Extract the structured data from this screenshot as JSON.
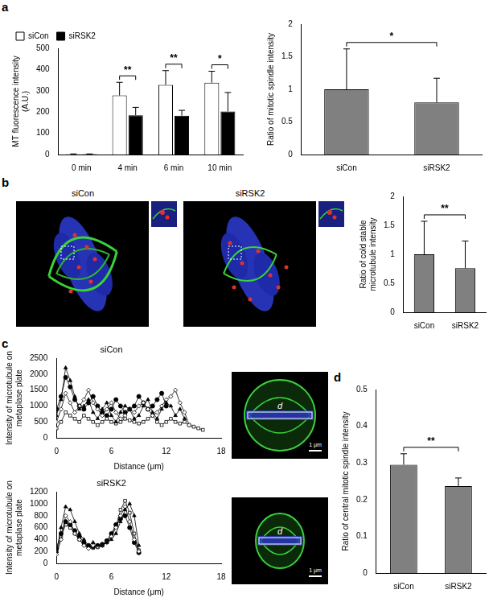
{
  "panel_labels": [
    "a",
    "b",
    "c",
    "d"
  ],
  "images": [
    {
      "label": "siCon"
    },
    {
      "label": "siRSK2"
    },
    {
      "label": "d",
      "scale_bar": "1 μm"
    },
    {
      "label": "d",
      "scale_bar": "1 μm"
    }
  ],
  "chart_data": [
    {
      "type": "bar",
      "categories": [
        "0 min",
        "4 min",
        "6 min",
        "10 min"
      ],
      "series": [
        {
          "name": "siCon",
          "color": "#ffffff",
          "values": [
            2,
            278,
            328,
            338
          ],
          "errors": [
            1,
            62,
            67,
            54
          ]
        },
        {
          "name": "siRSK2",
          "color": "#000000",
          "values": [
            2,
            185,
            183,
            203
          ],
          "errors": [
            1,
            37,
            25,
            89
          ]
        }
      ],
      "ylabel": [
        "MT fluorescence intensity",
        "(A.U.)"
      ],
      "ylim": [
        0,
        500
      ],
      "yticks": [
        0,
        100,
        200,
        300,
        400,
        500
      ],
      "legend": "upper left",
      "grid": false,
      "annotations": [
        {
          "text": "**",
          "category": "4 min"
        },
        {
          "text": "**",
          "category": "6 min"
        },
        {
          "text": "*",
          "category": "10 min"
        }
      ]
    },
    {
      "type": "bar",
      "categories": [
        "siCon",
        "siRSK2"
      ],
      "values": [
        1,
        0.8
      ],
      "errors": [
        0.62,
        0.37
      ],
      "color": "#808080",
      "ylabel": "Ratio of mitotic spindle intensity",
      "ylim": [
        0,
        2
      ],
      "yticks": [
        0,
        0.5,
        1,
        1.5,
        2
      ],
      "grid": false,
      "annotations": [
        {
          "text": "*",
          "categories": [
            "siCon",
            "siRSK2"
          ]
        }
      ]
    },
    {
      "type": "bar",
      "categories": [
        "siCon",
        "siRSK2"
      ],
      "values": [
        1,
        0.76
      ],
      "errors": [
        0.57,
        0.47
      ],
      "color": "#808080",
      "ylabel": [
        "Ratio of cold stable",
        "microtubule intensity"
      ],
      "ylim": [
        0,
        2
      ],
      "yticks": [
        0,
        0.5,
        1,
        1.5,
        2
      ],
      "grid": false,
      "annotations": [
        {
          "text": "**",
          "categories": [
            "siCon",
            "siRSK2"
          ]
        }
      ]
    },
    {
      "type": "line",
      "title": "siCon",
      "xlabel": "Distance (μm)",
      "ylabel": [
        "Intensity of microtubule on",
        "metaplase plate"
      ],
      "xlim": [
        0,
        18
      ],
      "xticks": [
        0,
        6,
        12,
        18
      ],
      "ylim": [
        0,
        2500
      ],
      "yticks": [
        0,
        500,
        1000,
        1500,
        2000,
        2500
      ],
      "grid": false,
      "series": [
        {
          "color": "#000000",
          "marker": "triangle",
          "x": [
            0,
            0.5,
            1,
            1.5,
            2,
            2.5,
            3,
            3.5,
            4,
            4.5,
            5,
            5.5,
            6,
            6.5,
            7,
            7.5,
            8,
            8.5,
            9,
            9.5,
            10,
            10.5,
            11,
            11.5,
            12,
            12.5,
            13,
            13.5,
            14
          ],
          "values": [
            700,
            1200,
            2200,
            1800,
            1300,
            900,
            1000,
            1200,
            800,
            600,
            900,
            1100,
            700,
            500,
            800,
            1000,
            900,
            600,
            700,
            1000,
            1200,
            800,
            600,
            900,
            1100,
            1000,
            700,
            900,
            600
          ]
        },
        {
          "color": "#000000",
          "marker": "diamond",
          "x": [
            0,
            0.5,
            1,
            1.5,
            2,
            2.5,
            3,
            3.5,
            4,
            4.5,
            5,
            5.5,
            6,
            6.5,
            7,
            7.5,
            8,
            8.5,
            9,
            9.5,
            10,
            10.5,
            11,
            11.5,
            12,
            12.5,
            13,
            13.5,
            14,
            14.5
          ],
          "values": [
            500,
            900,
            1400,
            1100,
            800,
            1000,
            1200,
            1500,
            1100,
            900,
            700,
            900,
            1100,
            800,
            600,
            700,
            900,
            800,
            1000,
            1100,
            900,
            700,
            800,
            1000,
            1200,
            1300,
            1500,
            1100,
            800,
            400
          ]
        },
        {
          "color": "#000000",
          "marker": "square",
          "x": [
            0,
            0.5,
            1,
            1.5,
            2,
            2.5,
            3,
            3.5,
            4,
            4.5,
            5,
            5.5,
            6,
            6.5,
            7,
            7.5,
            8,
            8.5,
            9,
            9.5,
            10,
            10.5,
            11,
            11.5,
            12,
            12.5,
            13,
            13.5,
            14,
            14.5,
            15,
            15.5,
            16
          ],
          "values": [
            300,
            500,
            800,
            700,
            600,
            500,
            700,
            600,
            500,
            400,
            500,
            600,
            500,
            450,
            500,
            600,
            550,
            500,
            450,
            500,
            600,
            700,
            500,
            400,
            500,
            600,
            500,
            450,
            500,
            400,
            350,
            300,
            250
          ]
        },
        {
          "color": "#000000",
          "marker": "circle",
          "x": [
            0,
            0.5,
            1,
            1.5,
            2,
            2.5,
            3,
            3.5,
            4,
            4.5,
            5,
            5.5,
            6,
            6.5,
            7,
            7.5,
            8,
            8.5,
            9,
            9.5,
            10,
            10.5,
            11,
            11.5,
            12
          ],
          "values": [
            900,
            1300,
            1900,
            1600,
            1200,
            1000,
            900,
            1100,
            1300,
            1000,
            800,
            700,
            900,
            1200,
            1000,
            800,
            900,
            1000,
            1300,
            1100,
            900,
            1000,
            1200,
            1400,
            1000
          ]
        }
      ]
    },
    {
      "type": "line",
      "title": "siRSK2",
      "xlabel": "Distance (μm)",
      "ylabel": [
        "Intensity of microtubule on",
        "metaplase plate"
      ],
      "xlim": [
        0,
        18
      ],
      "xticks": [
        0,
        6,
        12,
        18
      ],
      "ylim": [
        0,
        1200
      ],
      "yticks": [
        0,
        200,
        400,
        600,
        800,
        1000,
        1200
      ],
      "grid": false,
      "series": [
        {
          "color": "#000000",
          "marker": "triangle",
          "x": [
            0,
            0.5,
            1,
            1.5,
            2,
            2.5,
            3,
            3.5,
            4,
            4.5,
            5,
            5.5,
            6,
            6.5,
            7,
            7.5,
            8,
            8.5,
            9
          ],
          "values": [
            200,
            600,
            950,
            900,
            700,
            500,
            400,
            300,
            350,
            300,
            300,
            350,
            400,
            500,
            700,
            900,
            1000,
            800,
            300
          ]
        },
        {
          "color": "#000000",
          "marker": "diamond",
          "x": [
            0,
            0.5,
            1,
            1.5,
            2,
            2.5,
            3,
            3.5,
            4,
            4.5,
            5,
            5.5,
            6,
            6.5,
            7,
            7.5,
            8,
            8.5,
            9
          ],
          "values": [
            150,
            400,
            800,
            700,
            500,
            400,
            300,
            250,
            300,
            280,
            300,
            350,
            450,
            600,
            800,
            950,
            700,
            400,
            200
          ]
        },
        {
          "color": "#000000",
          "marker": "circle",
          "x": [
            0,
            0.5,
            1,
            1.5,
            2,
            2.5,
            3,
            3.5,
            4,
            4.5,
            5,
            5.5,
            6,
            6.5,
            7,
            7.5,
            8,
            8.5,
            9
          ],
          "values": [
            250,
            500,
            700,
            650,
            550,
            450,
            350,
            300,
            280,
            300,
            320,
            380,
            500,
            650,
            750,
            800,
            600,
            350,
            180
          ]
        },
        {
          "color": "#000000",
          "marker": "square",
          "x": [
            0,
            0.5,
            1,
            1.5,
            2,
            2.5,
            3,
            3.5,
            4,
            4.5,
            5,
            5.5,
            6,
            6.5,
            7,
            7.5,
            8,
            8.5,
            9
          ],
          "values": [
            200,
            450,
            650,
            600,
            500,
            400,
            330,
            280,
            260,
            270,
            300,
            360,
            480,
            620,
            900,
            1050,
            850,
            500,
            220
          ]
        }
      ]
    },
    {
      "type": "bar",
      "categories": [
        "siCon",
        "siRSK2"
      ],
      "values": [
        0.295,
        0.237
      ],
      "errors": [
        0.03,
        0.022
      ],
      "color": "#808080",
      "ylabel": "Ratio of central mitotic spindle intensity",
      "ylim": [
        0,
        0.5
      ],
      "yticks": [
        0,
        0.1,
        0.2,
        0.3,
        0.4,
        0.5
      ],
      "grid": false,
      "annotations": [
        {
          "text": "**",
          "categories": [
            "siCon",
            "siRSK2"
          ]
        }
      ]
    }
  ]
}
